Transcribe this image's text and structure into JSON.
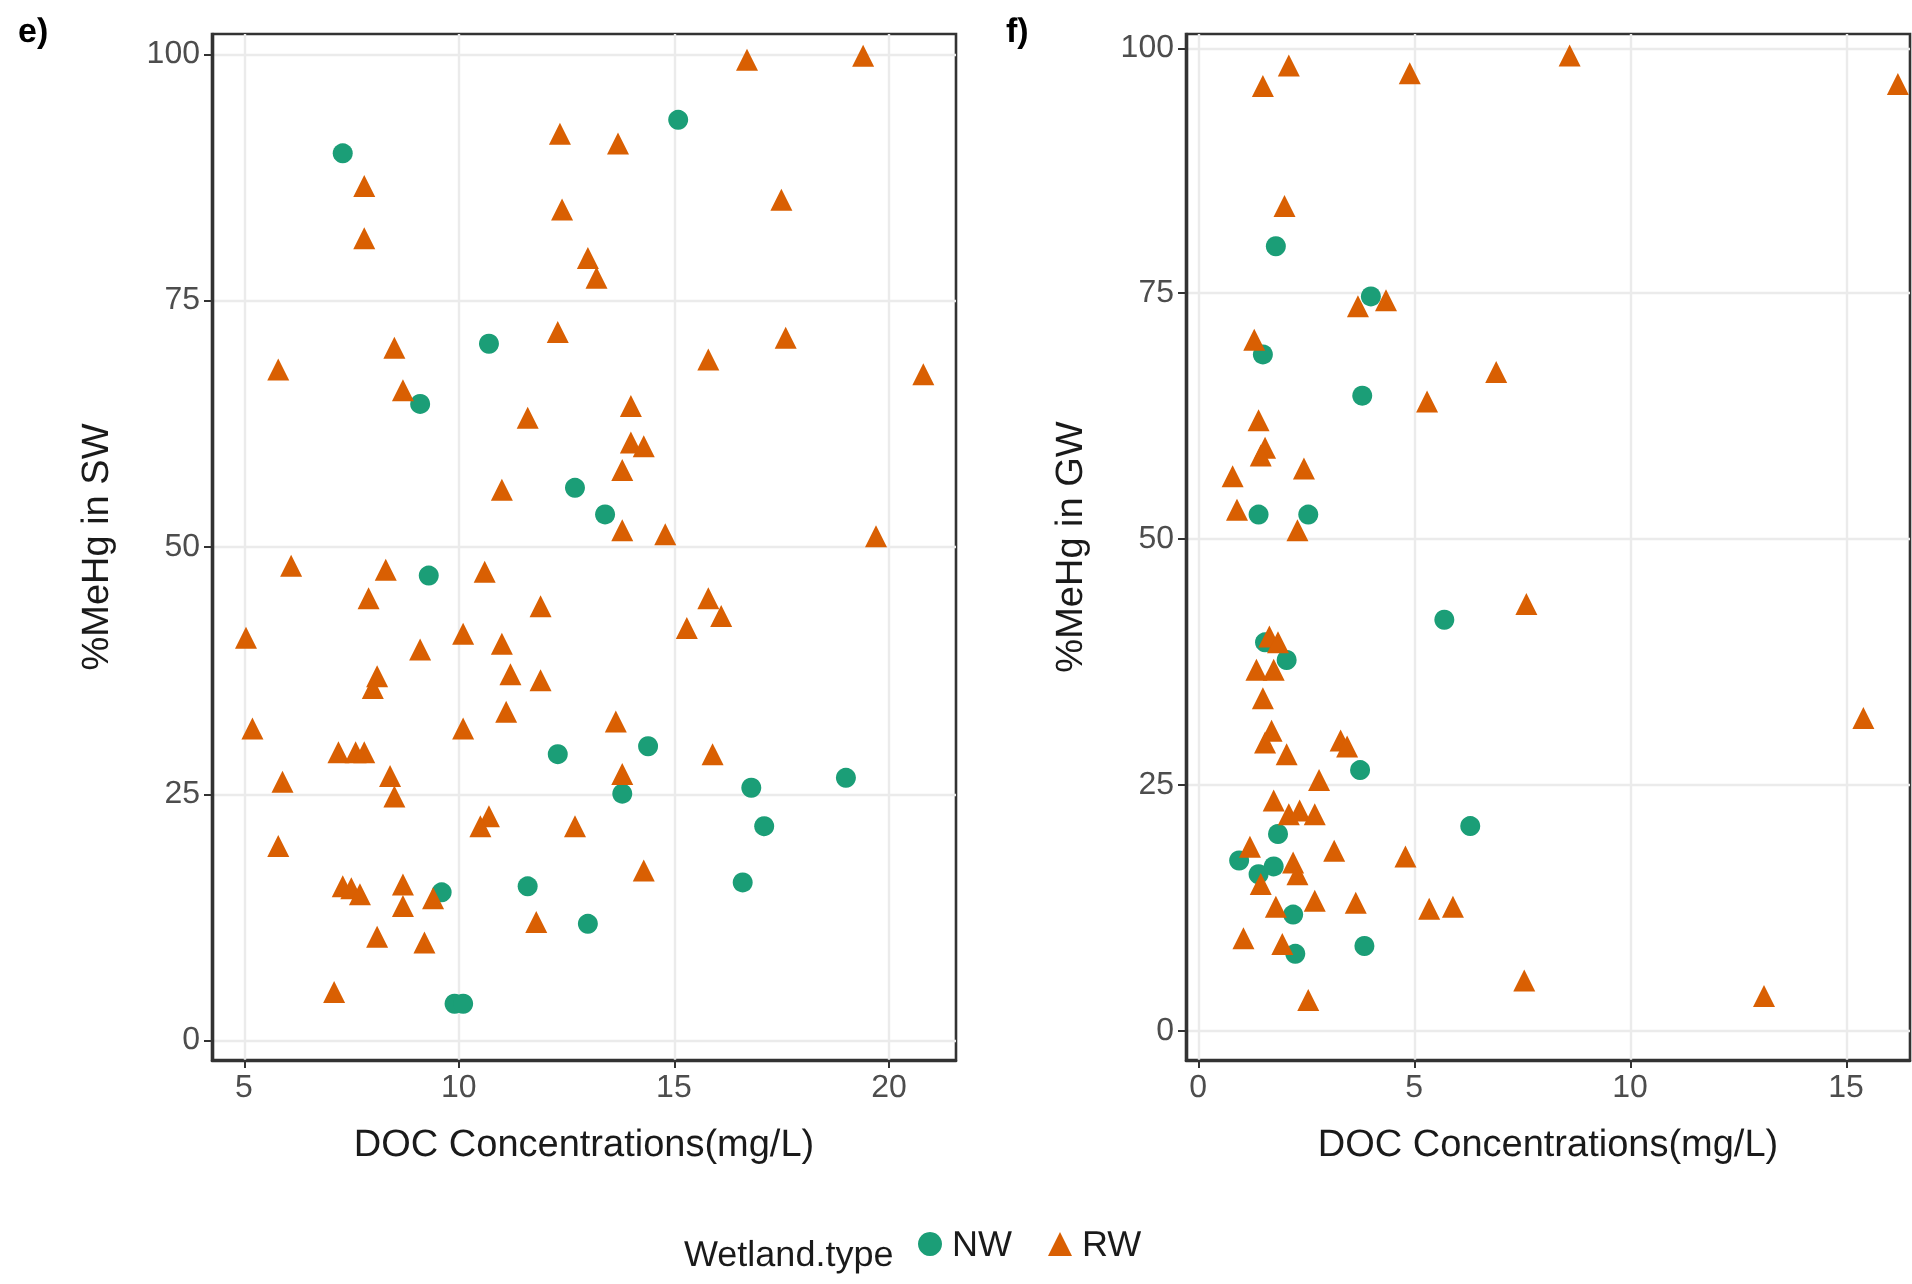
{
  "chart_data": [
    {
      "type": "scatter",
      "title": "e)",
      "xlabel": "DOC Concentrations(mg/L)",
      "ylabel": "%MeHg in SW",
      "xlim": [
        4.26,
        21.56
      ],
      "ylim": [
        -2,
        102
      ],
      "xticks": [
        5,
        10,
        15,
        20
      ],
      "yticks": [
        0,
        25,
        50,
        75,
        100
      ],
      "grid": true,
      "legend": false,
      "series": [
        {
          "color": "#1b9e77",
          "marker": "circle",
          "x": [
            7.3,
            15.1,
            10.7,
            9.1,
            12.7,
            13.4,
            9.3,
            12.3,
            14.4,
            13.8,
            16.8,
            19.0,
            17.1,
            9.6,
            11.6,
            16.6,
            13.0,
            9.9,
            10.1
          ],
          "values": [
            89.9,
            93.3,
            70.6,
            64.5,
            56,
            53.3,
            47.1,
            29,
            29.8,
            25,
            25.6,
            26.6,
            21.7,
            15,
            15.6,
            16,
            11.8,
            3.7,
            3.7
          ]
        },
        {
          "color": "#d95f02",
          "marker": "triangle",
          "x": [
            16.7,
            19.4,
            12.35,
            13.7,
            7.8,
            12.4,
            17.5,
            7.8,
            13.0,
            13.2,
            12.3,
            17.6,
            5.8,
            8.5,
            8.7,
            15.8,
            20.8,
            14.0,
            11.6,
            14.0,
            14.3,
            13.8,
            11.0,
            13.8,
            14.8,
            19.7,
            6.1,
            8.3,
            10.6,
            7.9,
            11.9,
            15.8,
            16.1,
            5.05,
            10.1,
            11.0,
            9.1,
            15.3,
            8.1,
            8.0,
            11.2,
            11.9,
            5.2,
            10.1,
            11.1,
            13.65,
            7.2,
            7.6,
            7.8,
            15.9,
            5.9,
            8.4,
            8.5,
            13.8,
            10.7,
            10.5,
            12.7,
            5.8,
            14.3,
            7.3,
            7.5,
            7.7,
            8.7,
            8.7,
            9.4,
            11.8,
            8.1,
            9.2,
            7.1
          ],
          "values": [
            99.4,
            99.8,
            91.9,
            90.9,
            86.6,
            84.2,
            85.2,
            81.3,
            79.3,
            77.3,
            71.8,
            71.2,
            68,
            70.2,
            65.9,
            69,
            67.5,
            64.3,
            63.1,
            60.6,
            60.2,
            57.8,
            55.8,
            51.7,
            51.3,
            51.1,
            48.1,
            47.7,
            47.5,
            44.8,
            44,
            44.8,
            43,
            40.8,
            41.2,
            40.2,
            39.6,
            41.8,
            36.9,
            35.7,
            37.1,
            36.5,
            31.6,
            31.6,
            33.3,
            32.3,
            29.2,
            29.2,
            29.2,
            29,
            26.2,
            26.8,
            24.7,
            27,
            22.7,
            21.7,
            21.7,
            19.7,
            17.2,
            15.6,
            15.4,
            14.8,
            15.8,
            13.6,
            14.4,
            12,
            10.5,
            9.9,
            4.9
          ]
        }
      ]
    },
    {
      "type": "scatter",
      "title": "f)",
      "xlabel": "DOC Concentrations(mg/L)",
      "ylabel": "%MeHg in GW",
      "xlim": [
        -0.28,
        16.48
      ],
      "ylim": [
        -3,
        101.4
      ],
      "xticks": [
        0,
        5,
        10,
        15
      ],
      "yticks": [
        0,
        25,
        50,
        75,
        100
      ],
      "grid": true,
      "legend": "bottom",
      "legend_title": "Wetland.type",
      "series": [
        {
          "name": "NW",
          "color": "#1b9e77",
          "marker": "circle",
          "x": [
            1.8,
            4.0,
            1.5,
            3.8,
            1.4,
            2.55,
            5.7,
            1.55,
            2.05,
            3.75,
            6.3,
            1.85,
            0.95,
            1.4,
            1.75,
            2.2,
            3.85,
            2.25
          ],
          "values": [
            79.8,
            74.7,
            68.8,
            64.6,
            52.5,
            52.5,
            41.8,
            39.5,
            37.7,
            26.5,
            20.8,
            20,
            17.3,
            15.9,
            16.7,
            11.8,
            8.6,
            7.8
          ]
        },
        {
          "name": "RW",
          "color": "#d95f02",
          "marker": "triangle",
          "x": [
            2.1,
            1.5,
            4.9,
            8.6,
            16.2,
            2.0,
            3.7,
            4.35,
            1.3,
            6.9,
            5.3,
            1.4,
            1.55,
            1.45,
            0.8,
            2.45,
            0.9,
            2.3,
            7.6,
            15.4,
            1.65,
            1.85,
            1.35,
            1.75,
            1.5,
            1.7,
            1.55,
            2.05,
            3.3,
            3.45,
            2.8,
            1.75,
            2.1,
            2.35,
            2.7,
            1.2,
            3.15,
            4.8,
            2.2,
            2.3,
            1.45,
            1.8,
            2.7,
            3.65,
            5.35,
            5.9,
            1.05,
            1.95,
            2.55,
            7.55,
            13.1
          ],
          "values": [
            98.2,
            96.1,
            97.4,
            99.2,
            96.3,
            83.9,
            73.7,
            74.3,
            70.3,
            67,
            64,
            62.1,
            59.3,
            58.5,
            56.4,
            57.2,
            53,
            50.9,
            43.4,
            31.8,
            40.1,
            39.5,
            36.7,
            36.7,
            33.8,
            30.5,
            29.3,
            28.1,
            29.5,
            28.9,
            25.5,
            23.4,
            22,
            22.4,
            22,
            18.7,
            18.3,
            17.7,
            17.1,
            15.9,
            14.9,
            12.6,
            13.2,
            13,
            12.4,
            12.6,
            9.4,
            8.8,
            3.1,
            5.1,
            3.5
          ]
        }
      ]
    }
  ]
}
